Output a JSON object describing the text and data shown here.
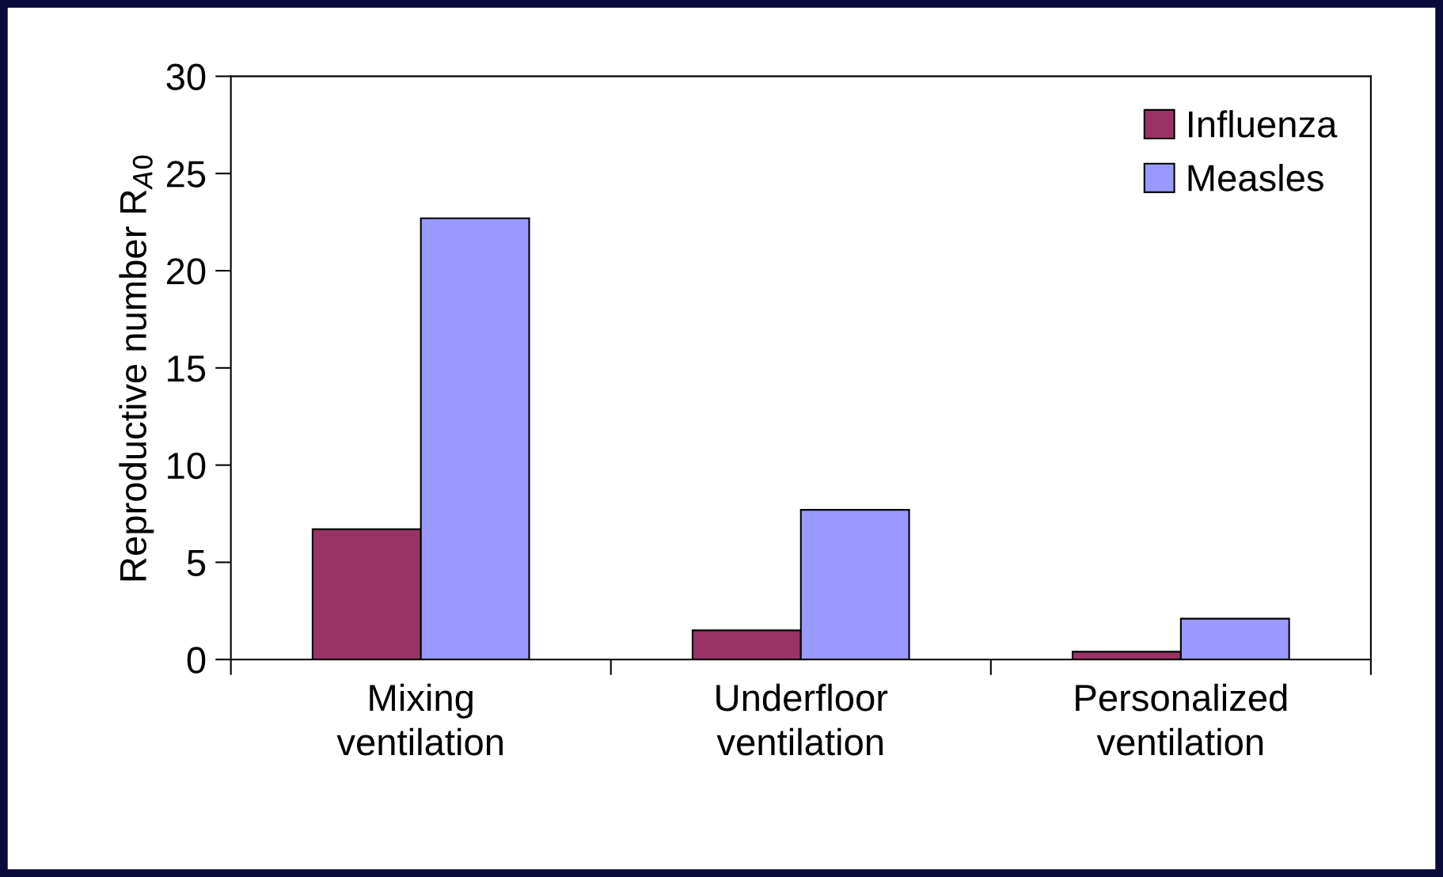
{
  "chart_data": {
    "type": "bar",
    "ylabel": "Reproductive number R$_{A0}$",
    "categories": [
      "Mixing\nventilation",
      "Underfloor\nventilation",
      "Personalized\nventilation"
    ],
    "series": [
      {
        "name": "Influenza",
        "color": "#993366",
        "values": [
          6.7,
          1.5,
          0.4
        ]
      },
      {
        "name": "Measles",
        "color": "#9999ff",
        "values": [
          22.7,
          7.7,
          2.1
        ]
      }
    ],
    "ylim": [
      0,
      30
    ],
    "yticks": [
      0,
      5,
      10,
      15,
      20,
      25,
      30
    ],
    "grid": false,
    "legend": "top right"
  }
}
